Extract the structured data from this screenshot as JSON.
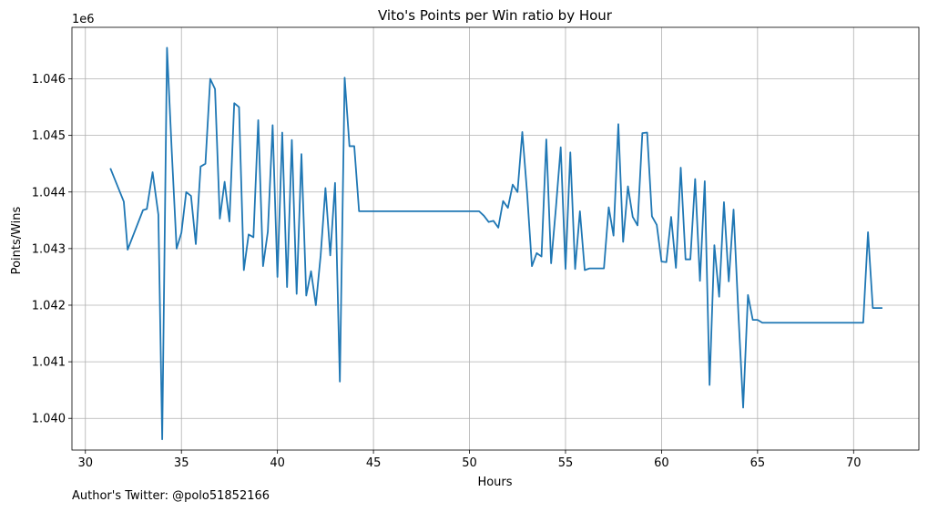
{
  "chart_data": {
    "type": "line",
    "title": "Vito's Points per Win ratio by Hour",
    "xlabel": "Hours",
    "ylabel": "Points/Wins",
    "y_offset_label": "1e6",
    "xlim": [
      29.3,
      73.4
    ],
    "ylim": [
      1039.44,
      1046.91
    ],
    "x_ticks": [
      30,
      35,
      40,
      45,
      50,
      55,
      60,
      65,
      70
    ],
    "y_ticks": [
      1.04,
      1.041,
      1.042,
      1.043,
      1.044,
      1.045,
      1.046
    ],
    "y_tick_labels": [
      "1.040",
      "1.041",
      "1.042",
      "1.043",
      "1.044",
      "1.045",
      "1.046"
    ],
    "y_unit_note": "y values in thousands (x1e3); axis multiplier shown as 1e6 with ticks 1.040-1.046",
    "grid": true,
    "color": "#1f77b4",
    "series": [
      {
        "x": [
          31.3,
          32.0,
          32.2,
          33.0,
          33.2,
          33.5,
          33.8,
          34.0,
          34.25,
          34.5,
          34.75,
          35.0,
          35.25,
          35.5,
          35.75,
          36.0,
          36.25,
          36.5,
          36.75,
          37.0,
          37.25,
          37.5,
          37.75,
          38.0,
          38.25,
          38.5,
          38.75,
          39.0,
          39.25,
          39.5,
          39.75,
          40.0,
          40.25,
          40.5,
          40.75,
          41.0,
          41.25,
          41.5,
          41.75,
          42.0,
          42.25,
          42.5,
          42.75,
          43.0,
          43.25,
          43.5,
          43.75,
          44.0,
          44.25,
          50.5,
          50.75,
          51.0,
          51.25,
          51.5,
          51.75,
          52.0,
          52.25,
          52.5,
          52.75,
          53.0,
          53.25,
          53.5,
          53.75,
          54.0,
          54.25,
          54.5,
          54.75,
          55.0,
          55.25,
          55.5,
          55.75,
          56.0,
          56.25,
          56.5,
          56.75,
          57.0,
          57.25,
          57.5,
          57.75,
          58.0,
          58.25,
          58.5,
          58.75,
          59.0,
          59.25,
          59.5,
          59.75,
          60.0,
          60.25,
          60.5,
          60.75,
          61.0,
          61.25,
          61.5,
          61.75,
          62.0,
          62.25,
          62.5,
          62.75,
          63.0,
          63.25,
          63.5,
          63.75,
          64.0,
          64.25,
          64.5,
          64.75,
          65.0,
          65.25,
          70.5,
          70.75,
          71.0,
          71.25,
          71.5
        ],
        "y": [
          1044.42,
          1043.83,
          1042.98,
          1043.68,
          1043.7,
          1044.35,
          1043.6,
          1039.63,
          1046.55,
          1044.7,
          1043.0,
          1043.28,
          1044.0,
          1043.93,
          1043.08,
          1044.45,
          1044.5,
          1046.0,
          1045.82,
          1043.53,
          1044.18,
          1043.48,
          1045.57,
          1045.5,
          1042.62,
          1043.25,
          1043.2,
          1045.27,
          1042.69,
          1043.3,
          1045.18,
          1042.5,
          1045.05,
          1042.32,
          1044.92,
          1042.2,
          1044.67,
          1042.17,
          1042.6,
          1042.0,
          1042.88,
          1044.07,
          1042.88,
          1044.16,
          1040.65,
          1046.02,
          1044.81,
          1044.81,
          1043.66,
          1043.66,
          1043.58,
          1043.47,
          1043.49,
          1043.37,
          1043.84,
          1043.72,
          1044.13,
          1044.0,
          1045.06,
          1043.98,
          1042.69,
          1042.92,
          1042.86,
          1044.93,
          1042.74,
          1043.72,
          1044.79,
          1042.64,
          1044.7,
          1042.64,
          1043.66,
          1042.62,
          1042.65,
          1042.65,
          1042.65,
          1042.65,
          1043.73,
          1043.23,
          1045.2,
          1043.12,
          1044.1,
          1043.56,
          1043.41,
          1045.04,
          1045.05,
          1043.57,
          1043.42,
          1042.77,
          1042.76,
          1043.56,
          1042.66,
          1044.43,
          1042.81,
          1042.81,
          1044.23,
          1042.43,
          1044.19,
          1040.59,
          1043.06,
          1042.15,
          1043.82,
          1042.42,
          1043.69,
          1041.86,
          1040.19,
          1042.18,
          1041.74,
          1041.74,
          1041.69,
          1041.69,
          1043.29,
          1041.95,
          1041.95,
          1041.95
        ]
      }
    ]
  },
  "footer": {
    "caption": "Author's Twitter: @polo51852166"
  }
}
